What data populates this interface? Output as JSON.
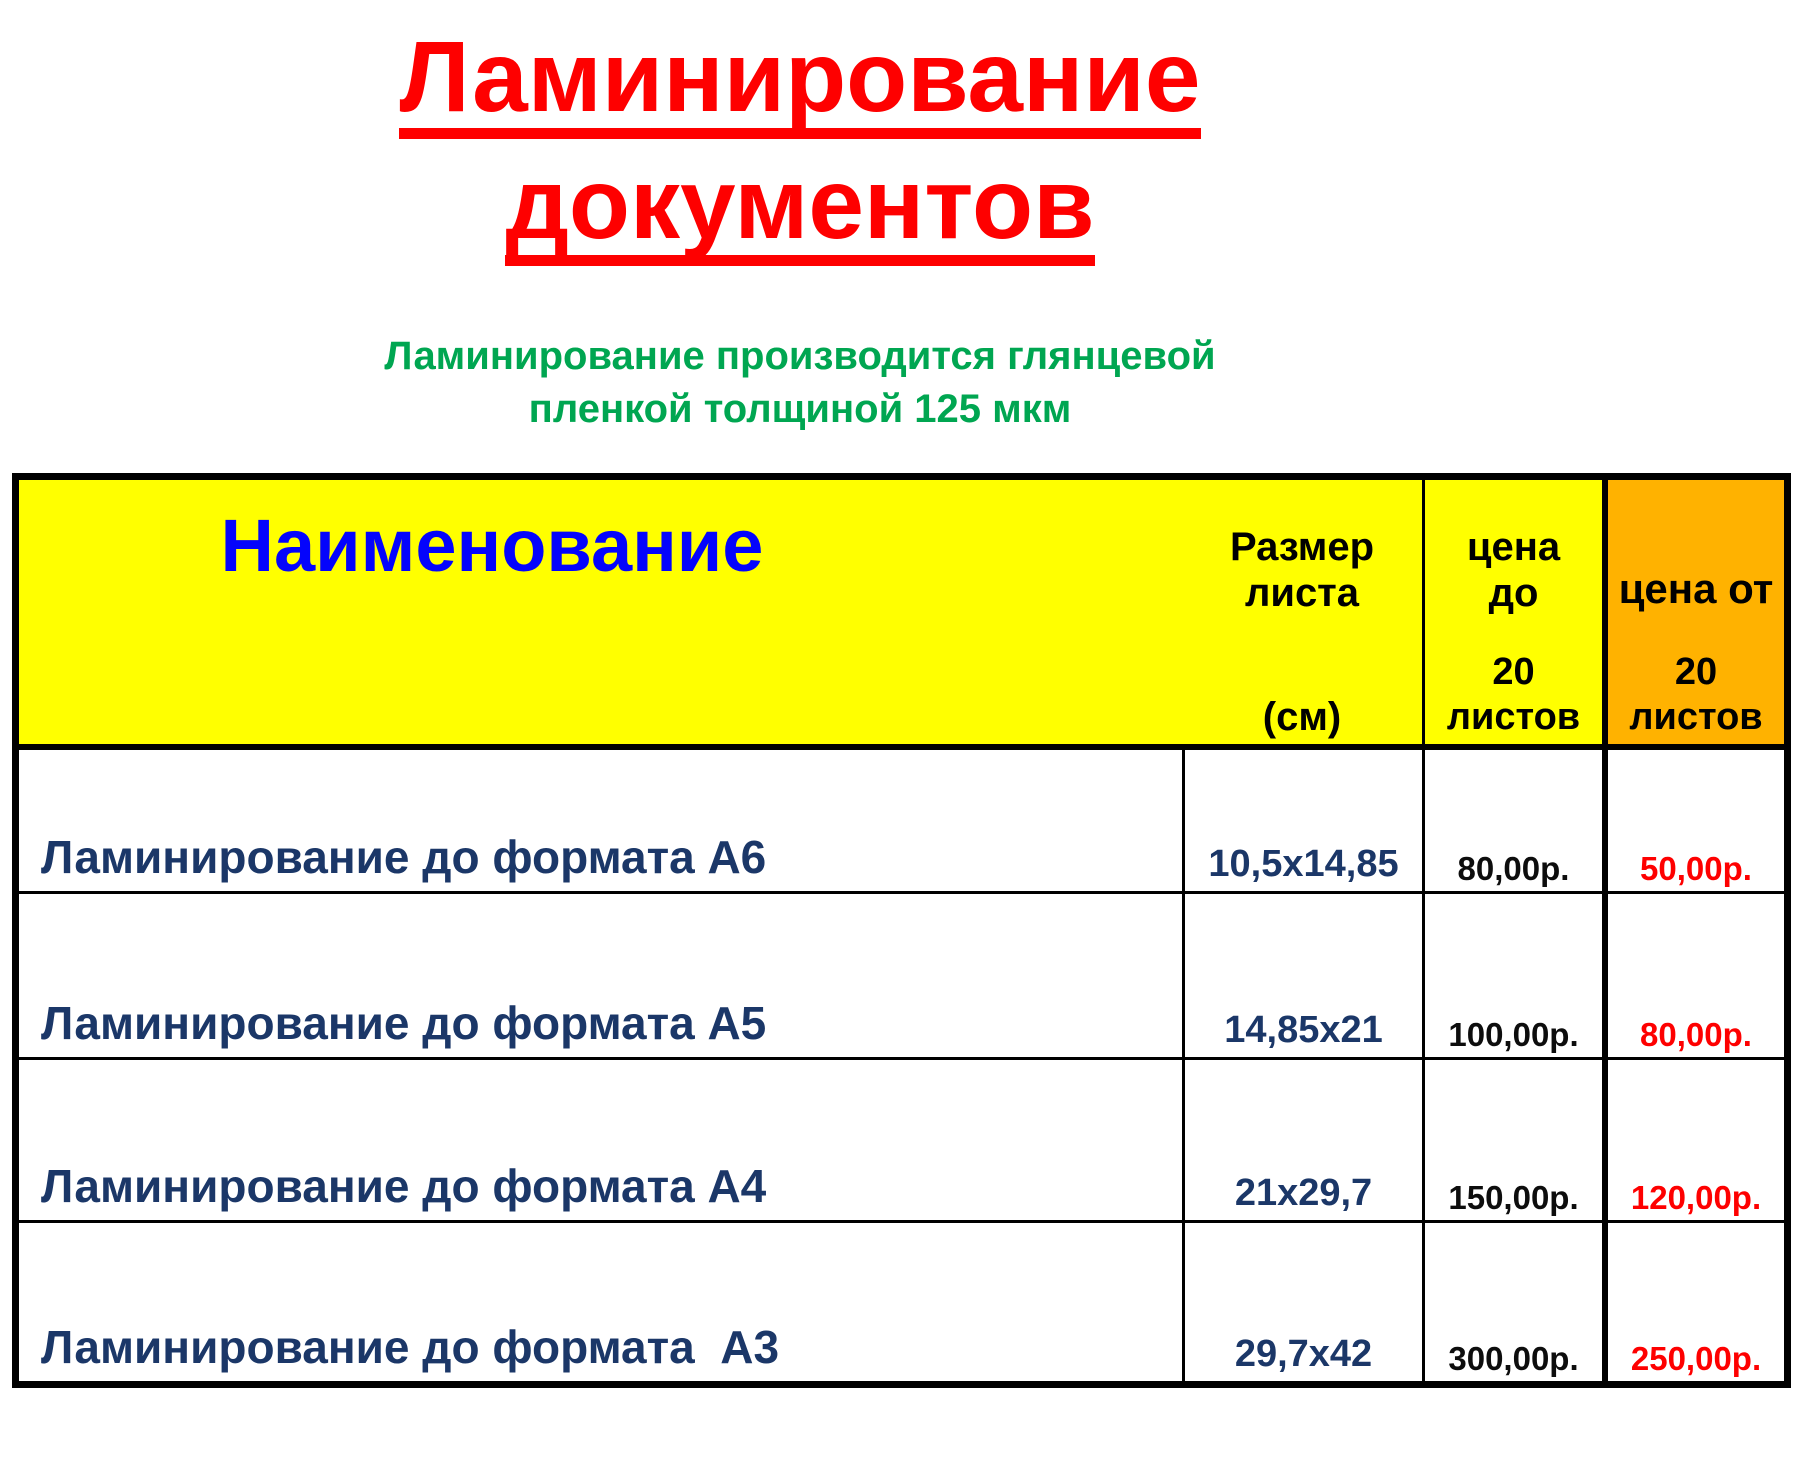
{
  "page": {
    "title_line1": "Ламинирование",
    "title_line2": "документов",
    "subtitle_line1": "Ламинирование производится глянцевой",
    "subtitle_line2": "пленкой толщиной 125 мкм"
  },
  "table": {
    "header": {
      "name_label": "Наименование",
      "size_label_line1": "Размер",
      "size_label_line2": "листа",
      "size_unit_label": "(см)",
      "price_to_line1": "цена",
      "price_to_line2": "до",
      "price_to_qty_line1": "20",
      "price_to_qty_line2": "листов",
      "price_from_label": "цена от",
      "price_from_qty_line1": "20",
      "price_from_qty_line2": "листов"
    },
    "rows": [
      {
        "name": "Ламинирование до формата А6",
        "size": "10,5х14,85",
        "price_to": "80,00р.",
        "price_from": "50,00р."
      },
      {
        "name": "Ламинирование до формата А5",
        "size": "14,85х21",
        "price_to": "100,00р.",
        "price_from": "80,00р."
      },
      {
        "name": "Ламинирование до формата А4",
        "size": "21х29,7",
        "price_to": "150,00р.",
        "price_from": "120,00р."
      },
      {
        "name": "Ламинирование до формата  А3",
        "size": "29,7х42",
        "price_to": "300,00р.",
        "price_from": "250,00р."
      }
    ]
  },
  "colors": {
    "title_red": "#fe0000",
    "subtitle_green": "#00a651",
    "header_yellow": "#ffff00",
    "header_orange": "#ffb200",
    "header_name_blue": "#0404fc",
    "row_text_navy": "#1b3768",
    "price_black": "#0d0d0d",
    "price_discount_red": "#fe0000",
    "border_black": "#000000"
  }
}
